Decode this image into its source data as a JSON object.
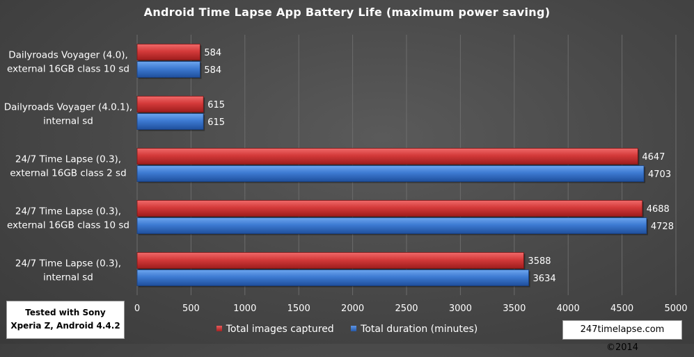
{
  "chart_data": {
    "type": "bar",
    "orientation": "horizontal",
    "title": "Android Time Lapse App Battery Life (maximum power saving)",
    "categories": [
      [
        "Dailyroads Voyager (4.0),",
        "external 16GB class 10 sd"
      ],
      [
        "Dailyroads Voyager (4.0.1),",
        "internal sd"
      ],
      [
        "24/7 Time Lapse (0.3),",
        "external 16GB class 2 sd"
      ],
      [
        "24/7 Time Lapse (0.3),",
        "external 16GB class 10 sd"
      ],
      [
        "24/7 Time Lapse (0.3),",
        "internal sd"
      ]
    ],
    "series": [
      {
        "name": "Total images captured",
        "color": "#c0282a",
        "values": [
          584,
          615,
          4647,
          4688,
          3588
        ]
      },
      {
        "name": "Total duration (minutes)",
        "color": "#2f6cc4",
        "values": [
          584,
          615,
          4703,
          4728,
          3634
        ]
      }
    ],
    "xlim": [
      0,
      5000
    ],
    "xticks": [
      "0",
      "500",
      "1000",
      "1500",
      "2000",
      "2500",
      "3000",
      "3500",
      "4000",
      "4500",
      "5000"
    ],
    "grid": true,
    "legend_position": "bottom"
  },
  "note": {
    "line1": "Tested with Sony",
    "line2": "Xperia Z, Android 4.4.2"
  },
  "credit": "247timelapse.com ©2014"
}
